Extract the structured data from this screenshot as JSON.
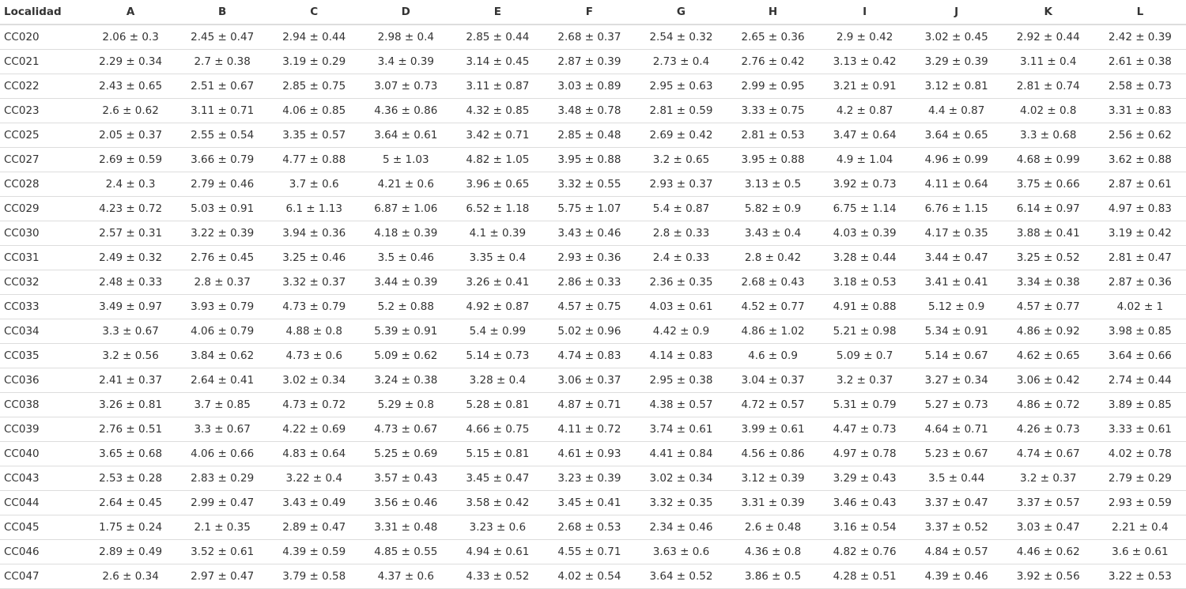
{
  "table": {
    "headers": [
      "Localidad",
      "A",
      "B",
      "C",
      "D",
      "E",
      "F",
      "G",
      "H",
      "I",
      "J",
      "K",
      "L"
    ],
    "rows": [
      [
        "CC020",
        "2.06 ± 0.3",
        "2.45 ± 0.47",
        "2.94 ± 0.44",
        "2.98 ± 0.4",
        "2.85 ± 0.44",
        "2.68 ± 0.37",
        "2.54 ± 0.32",
        "2.65 ± 0.36",
        "2.9 ± 0.42",
        "3.02 ± 0.45",
        "2.92 ± 0.44",
        "2.42 ± 0.39"
      ],
      [
        "CC021",
        "2.29 ± 0.34",
        "2.7 ± 0.38",
        "3.19 ± 0.29",
        "3.4 ± 0.39",
        "3.14 ± 0.45",
        "2.87 ± 0.39",
        "2.73 ± 0.4",
        "2.76 ± 0.42",
        "3.13 ± 0.42",
        "3.29 ± 0.39",
        "3.11 ± 0.4",
        "2.61 ± 0.38"
      ],
      [
        "CC022",
        "2.43 ± 0.65",
        "2.51 ± 0.67",
        "2.85 ± 0.75",
        "3.07 ± 0.73",
        "3.11 ± 0.87",
        "3.03 ± 0.89",
        "2.95 ± 0.63",
        "2.99 ± 0.95",
        "3.21 ± 0.91",
        "3.12 ± 0.81",
        "2.81 ± 0.74",
        "2.58 ± 0.73"
      ],
      [
        "CC023",
        "2.6 ± 0.62",
        "3.11 ± 0.71",
        "4.06 ± 0.85",
        "4.36 ± 0.86",
        "4.32 ± 0.85",
        "3.48 ± 0.78",
        "2.81 ± 0.59",
        "3.33 ± 0.75",
        "4.2 ± 0.87",
        "4.4 ± 0.87",
        "4.02 ± 0.8",
        "3.31 ± 0.83"
      ],
      [
        "CC025",
        "2.05 ± 0.37",
        "2.55 ± 0.54",
        "3.35 ± 0.57",
        "3.64 ± 0.61",
        "3.42 ± 0.71",
        "2.85 ± 0.48",
        "2.69 ± 0.42",
        "2.81 ± 0.53",
        "3.47 ± 0.64",
        "3.64 ± 0.65",
        "3.3 ± 0.68",
        "2.56 ± 0.62"
      ],
      [
        "CC027",
        "2.69 ± 0.59",
        "3.66 ± 0.79",
        "4.77 ± 0.88",
        "5 ± 1.03",
        "4.82 ± 1.05",
        "3.95 ± 0.88",
        "3.2 ± 0.65",
        "3.95 ± 0.88",
        "4.9 ± 1.04",
        "4.96 ± 0.99",
        "4.68 ± 0.99",
        "3.62 ± 0.88"
      ],
      [
        "CC028",
        "2.4 ± 0.3",
        "2.79 ± 0.46",
        "3.7 ± 0.6",
        "4.21 ± 0.6",
        "3.96 ± 0.65",
        "3.32 ± 0.55",
        "2.93 ± 0.37",
        "3.13 ± 0.5",
        "3.92 ± 0.73",
        "4.11 ± 0.64",
        "3.75 ± 0.66",
        "2.87 ± 0.61"
      ],
      [
        "CC029",
        "4.23 ± 0.72",
        "5.03 ± 0.91",
        "6.1 ± 1.13",
        "6.87 ± 1.06",
        "6.52 ± 1.18",
        "5.75 ± 1.07",
        "5.4 ± 0.87",
        "5.82 ± 0.9",
        "6.75 ± 1.14",
        "6.76 ± 1.15",
        "6.14 ± 0.97",
        "4.97 ± 0.83"
      ],
      [
        "CC030",
        "2.57 ± 0.31",
        "3.22 ± 0.39",
        "3.94 ± 0.36",
        "4.18 ± 0.39",
        "4.1 ± 0.39",
        "3.43 ± 0.46",
        "2.8 ± 0.33",
        "3.43 ± 0.4",
        "4.03 ± 0.39",
        "4.17 ± 0.35",
        "3.88 ± 0.41",
        "3.19 ± 0.42"
      ],
      [
        "CC031",
        "2.49 ± 0.32",
        "2.76 ± 0.45",
        "3.25 ± 0.46",
        "3.5 ± 0.46",
        "3.35 ± 0.4",
        "2.93 ± 0.36",
        "2.4 ± 0.33",
        "2.8 ± 0.42",
        "3.28 ± 0.44",
        "3.44 ± 0.47",
        "3.25 ± 0.52",
        "2.81 ± 0.47"
      ],
      [
        "CC032",
        "2.48 ± 0.33",
        "2.8 ± 0.37",
        "3.32 ± 0.37",
        "3.44 ± 0.39",
        "3.26 ± 0.41",
        "2.86 ± 0.33",
        "2.36 ± 0.35",
        "2.68 ± 0.43",
        "3.18 ± 0.53",
        "3.41 ± 0.41",
        "3.34 ± 0.38",
        "2.87 ± 0.36"
      ],
      [
        "CC033",
        "3.49 ± 0.97",
        "3.93 ± 0.79",
        "4.73 ± 0.79",
        "5.2 ± 0.88",
        "4.92 ± 0.87",
        "4.57 ± 0.75",
        "4.03 ± 0.61",
        "4.52 ± 0.77",
        "4.91 ± 0.88",
        "5.12 ± 0.9",
        "4.57 ± 0.77",
        "4.02 ± 1"
      ],
      [
        "CC034",
        "3.3 ± 0.67",
        "4.06 ± 0.79",
        "4.88 ± 0.8",
        "5.39 ± 0.91",
        "5.4 ± 0.99",
        "5.02 ± 0.96",
        "4.42 ± 0.9",
        "4.86 ± 1.02",
        "5.21 ± 0.98",
        "5.34 ± 0.91",
        "4.86 ± 0.92",
        "3.98 ± 0.85"
      ],
      [
        "CC035",
        "3.2 ± 0.56",
        "3.84 ± 0.62",
        "4.73 ± 0.6",
        "5.09 ± 0.62",
        "5.14 ± 0.73",
        "4.74 ± 0.83",
        "4.14 ± 0.83",
        "4.6 ± 0.9",
        "5.09 ± 0.7",
        "5.14 ± 0.67",
        "4.62 ± 0.65",
        "3.64 ± 0.66"
      ],
      [
        "CC036",
        "2.41 ± 0.37",
        "2.64 ± 0.41",
        "3.02 ± 0.34",
        "3.24 ± 0.38",
        "3.28 ± 0.4",
        "3.06 ± 0.37",
        "2.95 ± 0.38",
        "3.04 ± 0.37",
        "3.2 ± 0.37",
        "3.27 ± 0.34",
        "3.06 ± 0.42",
        "2.74 ± 0.44"
      ],
      [
        "CC038",
        "3.26 ± 0.81",
        "3.7 ± 0.85",
        "4.73 ± 0.72",
        "5.29 ± 0.8",
        "5.28 ± 0.81",
        "4.87 ± 0.71",
        "4.38 ± 0.57",
        "4.72 ± 0.57",
        "5.31 ± 0.79",
        "5.27 ± 0.73",
        "4.86 ± 0.72",
        "3.89 ± 0.85"
      ],
      [
        "CC039",
        "2.76 ± 0.51",
        "3.3 ± 0.67",
        "4.22 ± 0.69",
        "4.73 ± 0.67",
        "4.66 ± 0.75",
        "4.11 ± 0.72",
        "3.74 ± 0.61",
        "3.99 ± 0.61",
        "4.47 ± 0.73",
        "4.64 ± 0.71",
        "4.26 ± 0.73",
        "3.33 ± 0.61"
      ],
      [
        "CC040",
        "3.65 ± 0.68",
        "4.06 ± 0.66",
        "4.83 ± 0.64",
        "5.25 ± 0.69",
        "5.15 ± 0.81",
        "4.61 ± 0.93",
        "4.41 ± 0.84",
        "4.56 ± 0.86",
        "4.97 ± 0.78",
        "5.23 ± 0.67",
        "4.74 ± 0.67",
        "4.02 ± 0.78"
      ],
      [
        "CC043",
        "2.53 ± 0.28",
        "2.83 ± 0.29",
        "3.22 ± 0.4",
        "3.57 ± 0.43",
        "3.45 ± 0.47",
        "3.23 ± 0.39",
        "3.02 ± 0.34",
        "3.12 ± 0.39",
        "3.29 ± 0.43",
        "3.5 ± 0.44",
        "3.2 ± 0.37",
        "2.79 ± 0.29"
      ],
      [
        "CC044",
        "2.64 ± 0.45",
        "2.99 ± 0.47",
        "3.43 ± 0.49",
        "3.56 ± 0.46",
        "3.58 ± 0.42",
        "3.45 ± 0.41",
        "3.32 ± 0.35",
        "3.31 ± 0.39",
        "3.46 ± 0.43",
        "3.37 ± 0.47",
        "3.37 ± 0.57",
        "2.93 ± 0.59"
      ],
      [
        "CC045",
        "1.75 ± 0.24",
        "2.1 ± 0.35",
        "2.89 ± 0.47",
        "3.31 ± 0.48",
        "3.23 ± 0.6",
        "2.68 ± 0.53",
        "2.34 ± 0.46",
        "2.6 ± 0.48",
        "3.16 ± 0.54",
        "3.37 ± 0.52",
        "3.03 ± 0.47",
        "2.21 ± 0.4"
      ],
      [
        "CC046",
        "2.89 ± 0.49",
        "3.52 ± 0.61",
        "4.39 ± 0.59",
        "4.85 ± 0.55",
        "4.94 ± 0.61",
        "4.55 ± 0.71",
        "3.63 ± 0.6",
        "4.36 ± 0.8",
        "4.82 ± 0.76",
        "4.84 ± 0.57",
        "4.46 ± 0.62",
        "3.6 ± 0.61"
      ],
      [
        "CC047",
        "2.6 ± 0.34",
        "2.97 ± 0.47",
        "3.79 ± 0.58",
        "4.37 ± 0.6",
        "4.33 ± 0.52",
        "4.02 ± 0.54",
        "3.64 ± 0.52",
        "3.86 ± 0.5",
        "4.28 ± 0.51",
        "4.39 ± 0.46",
        "3.92 ± 0.56",
        "3.22 ± 0.53"
      ]
    ]
  }
}
